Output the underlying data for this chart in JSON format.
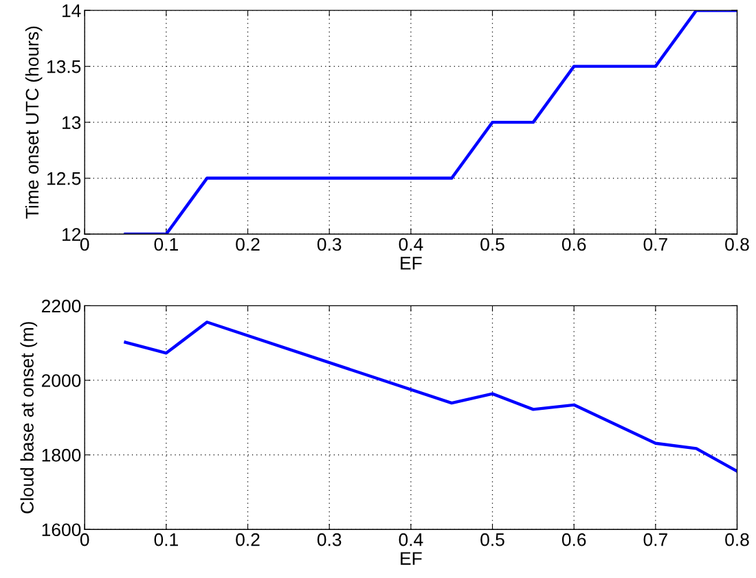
{
  "chart_data": [
    {
      "type": "line",
      "xlabel": "EF",
      "ylabel": "Time onset UTC (hours)",
      "x": [
        0.05,
        0.1,
        0.15,
        0.45,
        0.5,
        0.55,
        0.6,
        0.7,
        0.75,
        0.8
      ],
      "series": [
        {
          "color": "#0000ff",
          "values": [
            12,
            12,
            12.5,
            12.5,
            13,
            13,
            13.5,
            13.5,
            14,
            14
          ]
        }
      ],
      "xlim": [
        0,
        0.8
      ],
      "xticks": [
        0,
        0.1,
        0.2,
        0.3,
        0.4,
        0.5,
        0.6,
        0.7,
        0.8
      ],
      "ylim": [
        12,
        14
      ],
      "yticks": [
        12,
        12.5,
        13,
        13.5,
        14
      ],
      "grid": true,
      "line_style": "solid"
    },
    {
      "type": "line",
      "xlabel": "EF",
      "ylabel": "Cloud base at onset (m)",
      "x": [
        0.05,
        0.1,
        0.15,
        0.45,
        0.5,
        0.55,
        0.6,
        0.7,
        0.75,
        0.8
      ],
      "series": [
        {
          "color": "#0000ff",
          "values": [
            2102,
            2073,
            2156,
            1939,
            1964,
            1922,
            1934,
            1831,
            1817,
            1756
          ]
        }
      ],
      "xlim": [
        0,
        0.8
      ],
      "xticks": [
        0,
        0.1,
        0.2,
        0.3,
        0.4,
        0.5,
        0.6,
        0.7,
        0.8
      ],
      "ylim": [
        1600,
        2200
      ],
      "yticks": [
        1600,
        1800,
        2000,
        2200
      ],
      "grid": true,
      "line_style": "solid"
    }
  ]
}
